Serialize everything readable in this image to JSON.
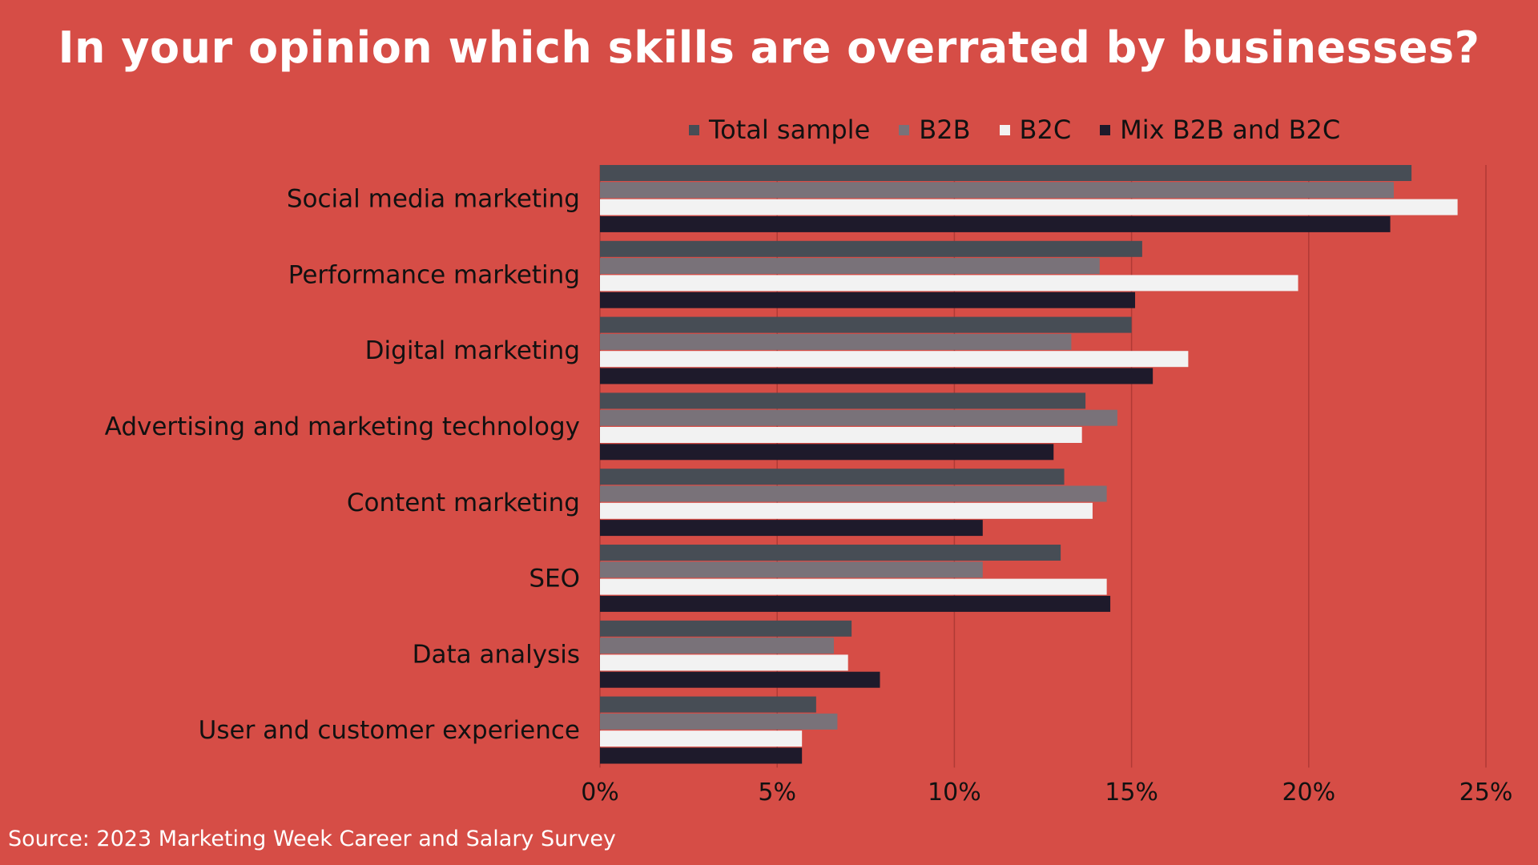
{
  "chart_data": {
    "type": "bar",
    "orientation": "horizontal",
    "title": "In your opinion which skills are overrated by businesses?",
    "categories": [
      "Social media marketing",
      "Performance marketing",
      "Digital marketing",
      "Advertising and marketing technology",
      "Content marketing",
      "SEO",
      "Data analysis",
      "User and customer experience"
    ],
    "series": [
      {
        "name": "Total sample",
        "color": "#474d55",
        "values": [
          22.9,
          15.3,
          15.0,
          13.7,
          13.1,
          13.0,
          7.1,
          6.1
        ]
      },
      {
        "name": "B2B",
        "color": "#797279",
        "values": [
          22.4,
          14.1,
          13.3,
          14.6,
          14.3,
          10.8,
          6.6,
          6.7
        ]
      },
      {
        "name": "B2C",
        "color": "#f2f2f2",
        "values": [
          24.2,
          19.7,
          16.6,
          13.6,
          13.9,
          14.3,
          7.0,
          5.7
        ]
      },
      {
        "name": "Mix B2B and B2C",
        "color": "#1e1a2b",
        "values": [
          22.3,
          15.1,
          15.6,
          12.8,
          10.8,
          14.4,
          7.9,
          5.7
        ]
      }
    ],
    "xlim": [
      0,
      25
    ],
    "xticks": [
      "0%",
      "5%",
      "10%",
      "15%",
      "20%",
      "25%"
    ],
    "grid": true,
    "legend_position": "top-right"
  },
  "source": "Source: 2023 Marketing Week Career and Salary Survey"
}
